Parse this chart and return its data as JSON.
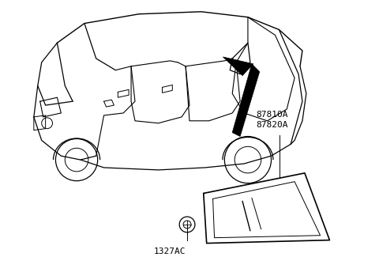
{
  "bg_color": "#ffffff",
  "label_87810A": "87810A",
  "label_87820A": "87820A",
  "label_1327AC": "1327AC",
  "label_fontsize": 8,
  "line_color": "#000000"
}
